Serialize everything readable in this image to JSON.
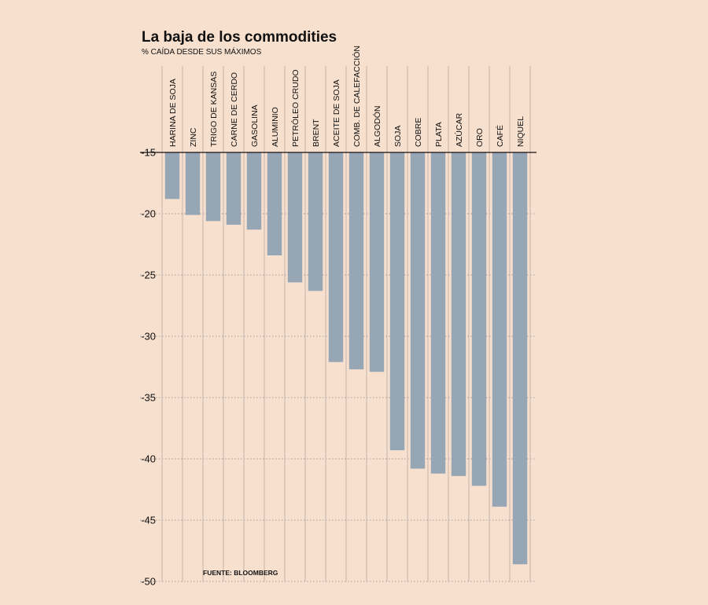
{
  "chart_data": {
    "type": "bar",
    "title": "La baja de los commodities",
    "subtitle": "% CAÍDA DESDE SUS MÁXIMOS",
    "source": "FUENTE: BLOOMBERG",
    "categories": [
      "HARINA DE SOJA",
      "ZINC",
      "TRIGO DE KANSAS",
      "CARNE DE CERDO",
      "GASOLINA",
      "ALUMINIO",
      "PETRÓLEO CRUDO",
      "BRENT",
      "ACEITE DE SOJA",
      "COMB. DE CALEFACCIÓN",
      "ALGODÓN",
      "SOJA",
      "COBRE",
      "PLATA",
      "AZÚCAR",
      "ORO",
      "CAFÉ",
      "NIQUEL"
    ],
    "values": [
      -18.8,
      -20.1,
      -20.6,
      -20.9,
      -21.3,
      -23.4,
      -25.6,
      -26.3,
      -32.1,
      -32.7,
      -32.9,
      -39.3,
      -40.8,
      -41.2,
      -41.4,
      -42.2,
      -43.9,
      -48.6
    ],
    "xlabel": "",
    "ylabel": "",
    "yticks": [
      -15,
      -20,
      -25,
      -30,
      -35,
      -40,
      -45,
      -50
    ],
    "ylim": [
      -50,
      -15
    ],
    "colors": {
      "bar": "#97a6b5",
      "background": "#f8e0cf",
      "separator": "#b5aaa2",
      "grid": "#888888",
      "axis": "#111111"
    }
  }
}
